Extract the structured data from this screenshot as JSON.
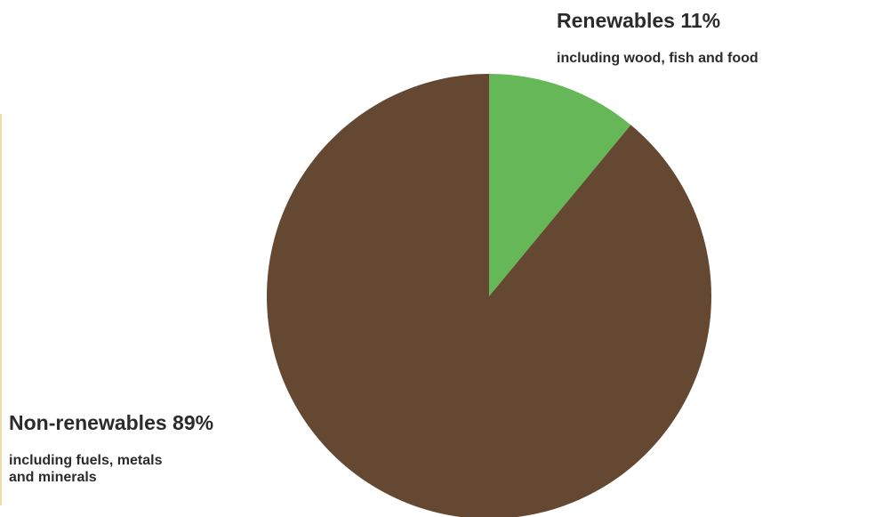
{
  "chart_data": {
    "type": "pie",
    "title": "",
    "slices": [
      {
        "label": "Renewables",
        "value": 11,
        "display": "Renewables 11%",
        "note": "including wood, fish and food",
        "color": "#66b757"
      },
      {
        "label": "Non-renewables",
        "value": 89,
        "display": "Non-renewables 89%",
        "note_lines": [
          "including fuels, metals",
          "and minerals"
        ],
        "color": "#654832"
      }
    ],
    "start_angle_deg": 0,
    "direction": "clockwise",
    "legend": "none"
  }
}
